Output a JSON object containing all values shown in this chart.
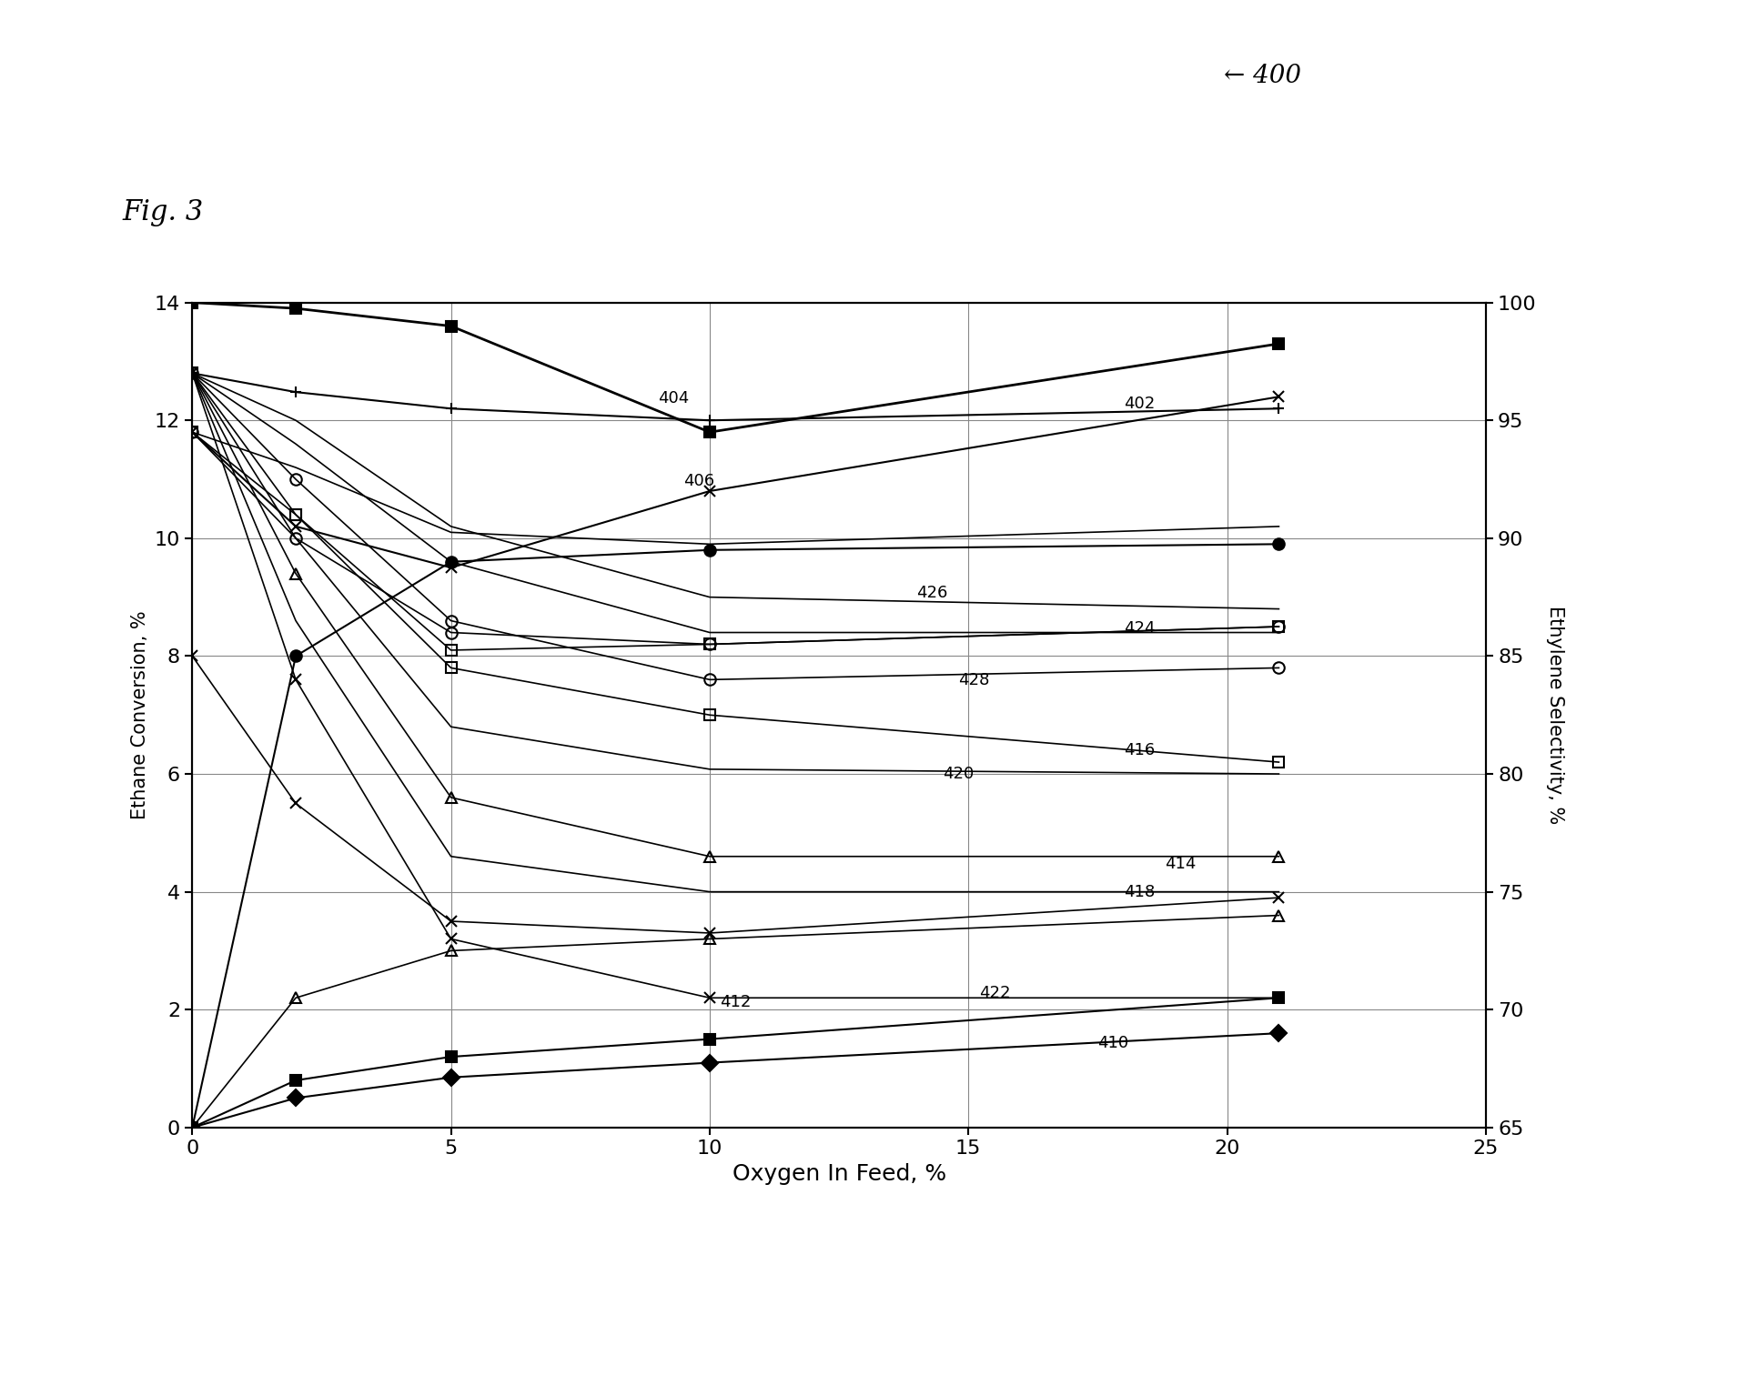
{
  "fig_label": "Fig. 3",
  "corner_label": "← 400",
  "xlabel": "Oxygen In Feed, %",
  "ylabel_left": "Ethane Conversion, %",
  "ylabel_right": "Ethylene Selectivity, %",
  "xlim": [
    0,
    25
  ],
  "ylim_left": [
    0,
    14
  ],
  "ylim_right": [
    65,
    100
  ],
  "xticks": [
    0,
    5,
    10,
    15,
    20,
    25
  ],
  "yticks_left": [
    0,
    2,
    4,
    6,
    8,
    10,
    12,
    14
  ],
  "yticks_right": [
    65,
    70,
    75,
    80,
    85,
    90,
    95,
    100
  ],
  "background_color": "#ffffff",
  "grid_color": "#888888",
  "left_series": [
    {
      "id": "404",
      "annot": [
        9.0,
        12.3
      ],
      "x": [
        0,
        2,
        5,
        10,
        21
      ],
      "y": [
        14.0,
        13.9,
        13.6,
        11.8,
        13.3
      ],
      "marker": "s",
      "mfc": "black",
      "lw": 2.0
    },
    {
      "id": "406",
      "annot": [
        9.5,
        10.9
      ],
      "x": [
        0,
        2,
        5,
        10,
        21
      ],
      "y": [
        11.8,
        10.2,
        9.5,
        10.8,
        12.4
      ],
      "marker": "x",
      "mfc": "black",
      "lw": 1.5
    },
    {
      "id": "conv_line1",
      "annot": null,
      "x": [
        0,
        2,
        5,
        10,
        21
      ],
      "y": [
        11.8,
        11.2,
        10.1,
        9.9,
        10.2
      ],
      "marker": "None",
      "mfc": "none",
      "lw": 1.2
    },
    {
      "id": "conv_circle_open",
      "annot": null,
      "x": [
        0,
        2,
        5,
        10,
        21
      ],
      "y": [
        11.8,
        10.0,
        8.4,
        8.2,
        8.5
      ],
      "marker": "o",
      "mfc": "none",
      "lw": 1.2
    },
    {
      "id": "conv_sq_open",
      "annot": null,
      "x": [
        0,
        2,
        5,
        10,
        21
      ],
      "y": [
        11.8,
        10.4,
        8.1,
        8.2,
        8.5
      ],
      "marker": "s",
      "mfc": "none",
      "lw": 1.2
    },
    {
      "id": "conv_circ_fill",
      "annot": null,
      "x": [
        0,
        2,
        5,
        10,
        21
      ],
      "y": [
        0.0,
        8.0,
        9.6,
        9.8,
        9.9
      ],
      "marker": "o",
      "mfc": "black",
      "lw": 1.5
    },
    {
      "id": "conv_x_fall",
      "annot": null,
      "x": [
        0,
        2,
        5,
        10,
        21
      ],
      "y": [
        8.0,
        5.5,
        3.5,
        3.3,
        3.9
      ],
      "marker": "x",
      "mfc": "black",
      "lw": 1.2
    },
    {
      "id": "conv_tri_open",
      "annot": null,
      "x": [
        0,
        2,
        5,
        10,
        21
      ],
      "y": [
        0.0,
        2.2,
        3.0,
        3.2,
        3.6
      ],
      "marker": "^",
      "mfc": "none",
      "lw": 1.2
    },
    {
      "id": "412",
      "annot": [
        10.2,
        2.05
      ],
      "x": [
        0,
        2,
        5,
        10,
        21
      ],
      "y": [
        0.0,
        0.8,
        1.2,
        1.5,
        2.2
      ],
      "marker": "s",
      "mfc": "black",
      "lw": 1.5
    },
    {
      "id": "410",
      "annot": [
        17.5,
        1.35
      ],
      "x": [
        0,
        2,
        5,
        10,
        21
      ],
      "y": [
        0.0,
        0.5,
        0.85,
        1.1,
        1.6
      ],
      "marker": "D",
      "mfc": "black",
      "lw": 1.5
    }
  ],
  "right_series": [
    {
      "id": "402",
      "annot": [
        18.0,
        95.5
      ],
      "x": [
        0,
        2,
        5,
        10,
        21
      ],
      "y": [
        97.0,
        96.2,
        95.5,
        95.0,
        95.5
      ],
      "marker": "+",
      "mfc": "black",
      "lw": 1.5
    },
    {
      "id": "426",
      "annot": [
        14.0,
        87.5
      ],
      "x": [
        0,
        2,
        5,
        10,
        21
      ],
      "y": [
        97.0,
        95.0,
        90.5,
        87.5,
        87.0
      ],
      "marker": "None",
      "mfc": "none",
      "lw": 1.2
    },
    {
      "id": "424",
      "annot": [
        18.0,
        86.0
      ],
      "x": [
        0,
        2,
        5,
        10,
        21
      ],
      "y": [
        97.0,
        94.0,
        89.0,
        86.0,
        86.0
      ],
      "marker": "None",
      "mfc": "none",
      "lw": 1.2
    },
    {
      "id": "428",
      "annot": [
        14.8,
        83.8
      ],
      "x": [
        0,
        2,
        5,
        10,
        21
      ],
      "y": [
        97.0,
        92.5,
        86.5,
        84.0,
        84.5
      ],
      "marker": "o",
      "mfc": "none",
      "lw": 1.2
    },
    {
      "id": "416",
      "annot": [
        18.0,
        80.8
      ],
      "x": [
        0,
        2,
        5,
        10,
        21
      ],
      "y": [
        97.0,
        91.0,
        84.5,
        82.5,
        80.5
      ],
      "marker": "s",
      "mfc": "none",
      "lw": 1.2
    },
    {
      "id": "420",
      "annot": [
        14.5,
        79.8
      ],
      "x": [
        0,
        2,
        5,
        10,
        21
      ],
      "y": [
        97.0,
        90.0,
        82.0,
        80.2,
        80.0
      ],
      "marker": "None",
      "mfc": "none",
      "lw": 1.2
    },
    {
      "id": "414",
      "annot": [
        18.8,
        76.0
      ],
      "x": [
        0,
        2,
        5,
        10,
        21
      ],
      "y": [
        97.0,
        88.5,
        79.0,
        76.5,
        76.5
      ],
      "marker": "^",
      "mfc": "none",
      "lw": 1.2
    },
    {
      "id": "418",
      "annot": [
        18.0,
        74.8
      ],
      "x": [
        0,
        2,
        5,
        10,
        21
      ],
      "y": [
        97.0,
        86.5,
        76.5,
        75.0,
        75.0
      ],
      "marker": "None",
      "mfc": "none",
      "lw": 1.2
    },
    {
      "id": "422",
      "annot": [
        15.2,
        70.5
      ],
      "x": [
        0,
        2,
        5,
        10,
        21
      ],
      "y": [
        97.0,
        84.0,
        73.0,
        70.5,
        70.5
      ],
      "marker": "x",
      "mfc": "none",
      "lw": 1.2
    }
  ]
}
